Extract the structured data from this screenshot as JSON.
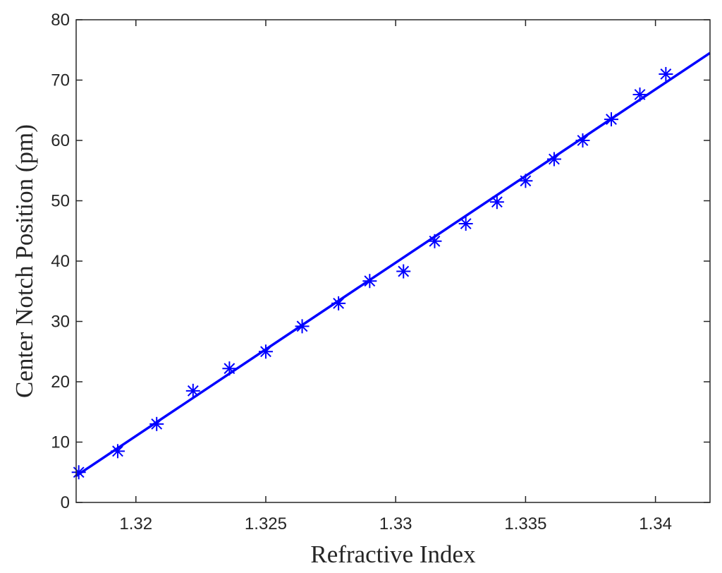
{
  "chart_data": {
    "type": "scatter",
    "xlabel": "Refractive Index",
    "ylabel": "Center Notch Position (pm)",
    "xlim": [
      1.3177,
      1.3421
    ],
    "ylim": [
      0,
      80
    ],
    "xticks": [
      1.32,
      1.325,
      1.33,
      1.335,
      1.34
    ],
    "xtick_labels": [
      "1.32",
      "1.325",
      "1.33",
      "1.335",
      "1.34"
    ],
    "yticks": [
      0,
      10,
      20,
      30,
      40,
      50,
      60,
      70,
      80
    ],
    "ytick_labels": [
      "0",
      "10",
      "20",
      "30",
      "40",
      "50",
      "60",
      "70",
      "80"
    ],
    "grid": false,
    "color": "#0000ff",
    "series": [
      {
        "type": "scatter",
        "marker": "asterisk",
        "points": [
          {
            "x": 1.3178,
            "y": 5.0
          },
          {
            "x": 1.3193,
            "y": 8.5
          },
          {
            "x": 1.3208,
            "y": 13.0
          },
          {
            "x": 1.3222,
            "y": 18.5
          },
          {
            "x": 1.3236,
            "y": 22.2
          },
          {
            "x": 1.325,
            "y": 25.0
          },
          {
            "x": 1.3264,
            "y": 29.2
          },
          {
            "x": 1.3278,
            "y": 33.0
          },
          {
            "x": 1.329,
            "y": 36.7
          },
          {
            "x": 1.3303,
            "y": 38.3
          },
          {
            "x": 1.3315,
            "y": 43.3
          },
          {
            "x": 1.3327,
            "y": 46.2
          },
          {
            "x": 1.3339,
            "y": 49.8
          },
          {
            "x": 1.335,
            "y": 53.3
          },
          {
            "x": 1.3361,
            "y": 56.9
          },
          {
            "x": 1.3372,
            "y": 60.0
          },
          {
            "x": 1.3383,
            "y": 63.5
          },
          {
            "x": 1.3394,
            "y": 67.6
          },
          {
            "x": 1.3404,
            "y": 71.0
          }
        ]
      },
      {
        "type": "line",
        "points": [
          {
            "x": 1.3177,
            "y": 4.4
          },
          {
            "x": 1.3421,
            "y": 74.5
          }
        ]
      }
    ]
  }
}
